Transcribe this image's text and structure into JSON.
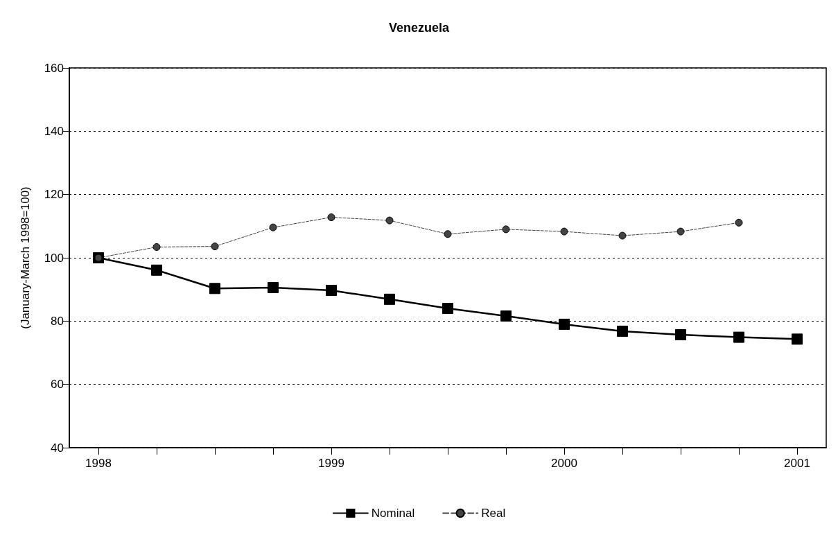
{
  "chart_data": {
    "type": "line",
    "title": "Venezuela",
    "ylabel": "(January-March 1998=100)",
    "categories": [
      "1998",
      null,
      null,
      null,
      "1999",
      null,
      null,
      null,
      "2000",
      null,
      null,
      null,
      "2001"
    ],
    "series": [
      {
        "name": "Nominal",
        "color": "#000000",
        "marker": "square",
        "line_style": "solid",
        "values": [
          100,
          96.1,
          90.3,
          90.6,
          89.7,
          86.9,
          84.0,
          81.6,
          79.0,
          76.8,
          75.7,
          74.9,
          74.3
        ]
      },
      {
        "name": "Real",
        "color": "#444444",
        "marker": "circle",
        "line_style": "dashed",
        "values": [
          100,
          103.4,
          103.6,
          109.6,
          112.8,
          111.8,
          107.5,
          109.0,
          108.3,
          107.0,
          108.3,
          111.1,
          null
        ]
      }
    ],
    "ylim": [
      40,
      160
    ],
    "yticks": [
      40,
      60,
      80,
      100,
      120,
      140,
      160
    ],
    "grid": "y",
    "legend": "bottom"
  }
}
